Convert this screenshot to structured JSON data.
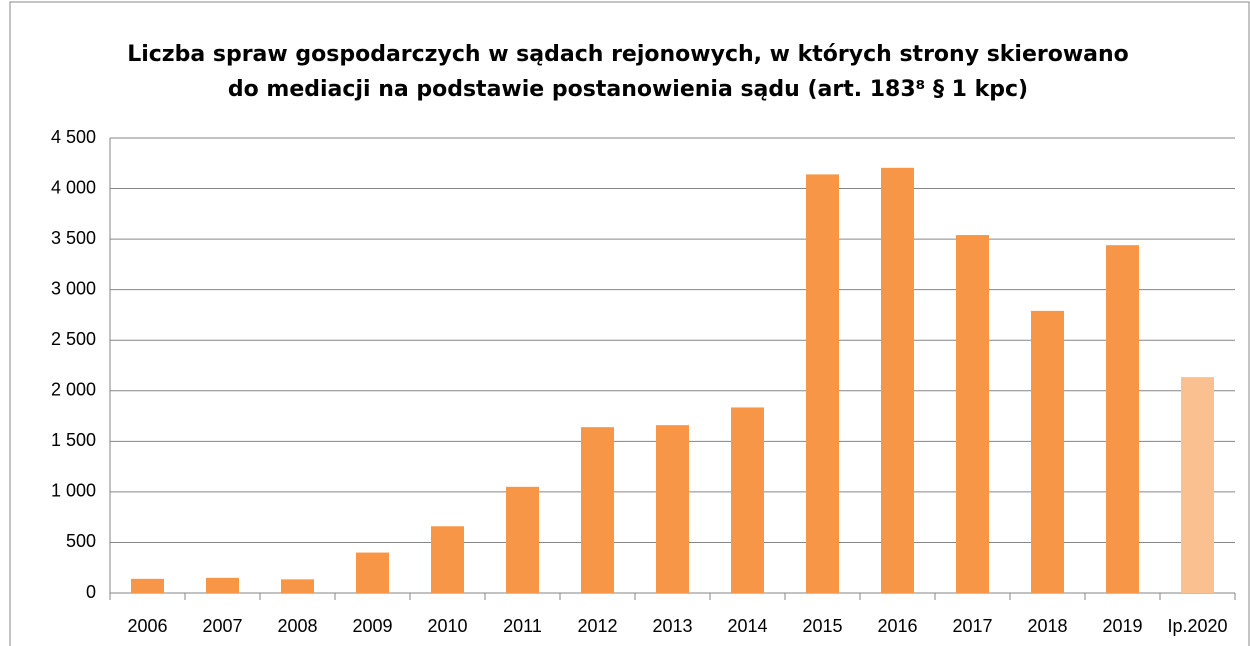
{
  "chart_data": {
    "type": "bar",
    "title": [
      "Liczba spraw gospodarczych w sądach rejonowych, w których strony skierowano",
      "do mediacji na podstawie postanowienia sądu (art. 183⁸ § 1 kpc)"
    ],
    "categories": [
      "2006",
      "2007",
      "2008",
      "2009",
      "2010",
      "2011",
      "2012",
      "2013",
      "2014",
      "2015",
      "2016",
      "2017",
      "2018",
      "2019",
      "Ip.2020"
    ],
    "values": [
      140,
      150,
      135,
      400,
      660,
      1050,
      1640,
      1660,
      1835,
      4140,
      4205,
      3540,
      2790,
      3440,
      2135
    ],
    "colors": [
      "#f79646",
      "#f79646",
      "#f79646",
      "#f79646",
      "#f79646",
      "#f79646",
      "#f79646",
      "#f79646",
      "#f79646",
      "#f79646",
      "#f79646",
      "#f79646",
      "#f79646",
      "#f79646",
      "#fac090"
    ],
    "ylim": [
      0,
      4500
    ],
    "yticks": [
      0,
      500,
      {
        "value": 1000,
        "label": "1 000"
      },
      {
        "value": 1500,
        "label": "1 500"
      },
      {
        "value": 2000,
        "label": "2 000"
      },
      {
        "value": 2500,
        "label": "2 500"
      },
      {
        "value": 3000,
        "label": "3 000"
      },
      {
        "value": 3500,
        "label": "3 500"
      },
      {
        "value": 4000,
        "label": "4 000"
      },
      {
        "value": 4500,
        "label": "4 500"
      }
    ],
    "grid": true
  }
}
